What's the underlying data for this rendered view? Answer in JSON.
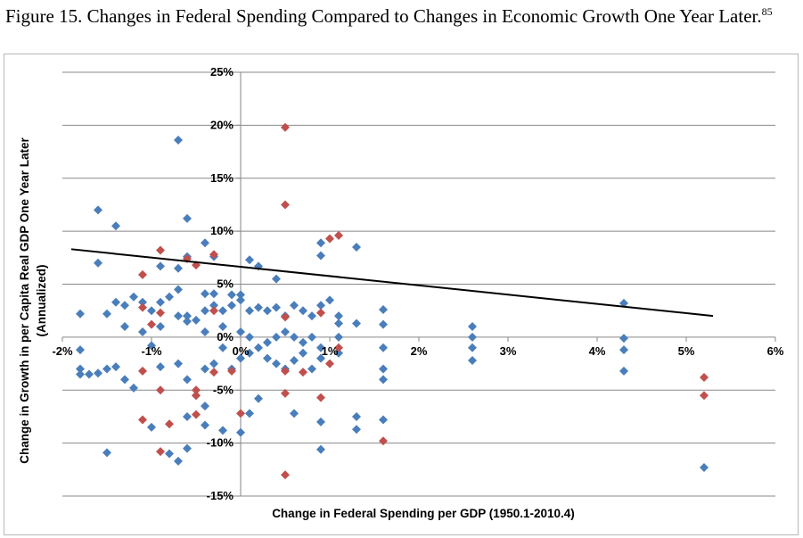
{
  "figure": {
    "title": "Figure 15. Changes in Federal Spending Compared to Changes in Economic Growth One Year Later.",
    "footnote": "85"
  },
  "colors": {
    "blue_marker": "#4a7ebb",
    "red_marker": "#c0504d",
    "gridline": "#888888",
    "axis": "#868686",
    "trendline": "#000000"
  },
  "chart_data": {
    "type": "scatter",
    "title": "",
    "xlabel": "Change in Federal Spending per GDP (1950.1-2010.4)",
    "ylabel_line1": "Change in Growth in per Capita Real GDP One Year Later",
    "ylabel_line2": "(Annualized)",
    "xlim": [
      -2,
      6
    ],
    "ylim": [
      -15,
      25
    ],
    "x_ticks": [
      -2,
      -1,
      0,
      1,
      2,
      3,
      4,
      5,
      6
    ],
    "x_tick_labels": [
      "-2%",
      "-1%",
      "0%",
      "1%",
      "2%",
      "3%",
      "4%",
      "5%",
      "6%"
    ],
    "y_ticks": [
      25,
      20,
      15,
      10,
      5,
      0,
      -5,
      -10,
      -15
    ],
    "y_tick_labels": [
      "25%",
      "20%",
      "15%",
      "10%",
      "5%",
      "0%",
      "-5%",
      "-10%",
      "-15%"
    ],
    "gridlines": "horizontal",
    "trendline": {
      "x": [
        -1.9,
        5.3
      ],
      "y": [
        8.3,
        2.0
      ]
    },
    "series": [
      {
        "name": "blue",
        "points": [
          [
            -1.6,
            12.0
          ],
          [
            -1.4,
            10.5
          ],
          [
            -0.7,
            18.6
          ],
          [
            -0.6,
            11.2
          ],
          [
            -0.4,
            8.9
          ],
          [
            -1.6,
            7.0
          ],
          [
            -0.9,
            6.7
          ],
          [
            -0.7,
            6.5
          ],
          [
            -0.6,
            7.6
          ],
          [
            -0.3,
            7.6
          ],
          [
            0.1,
            7.3
          ],
          [
            0.2,
            6.7
          ],
          [
            0.4,
            5.5
          ],
          [
            0.9,
            8.9
          ],
          [
            0.9,
            7.7
          ],
          [
            1.3,
            8.5
          ],
          [
            -1.8,
            2.2
          ],
          [
            -1.5,
            2.2
          ],
          [
            -1.4,
            3.3
          ],
          [
            -1.3,
            3.0
          ],
          [
            -1.2,
            3.8
          ],
          [
            -1.1,
            3.3
          ],
          [
            -1.0,
            2.5
          ],
          [
            -0.9,
            3.3
          ],
          [
            -0.8,
            3.8
          ],
          [
            -0.7,
            4.5
          ],
          [
            -0.7,
            2.0
          ],
          [
            -0.6,
            2.0
          ],
          [
            -0.5,
            1.6
          ],
          [
            -0.4,
            4.1
          ],
          [
            -0.4,
            2.5
          ],
          [
            -0.3,
            4.1
          ],
          [
            -0.3,
            3.0
          ],
          [
            -0.2,
            2.5
          ],
          [
            -0.1,
            3.0
          ],
          [
            -0.1,
            4.0
          ],
          [
            0.0,
            3.5
          ],
          [
            0.0,
            4.0
          ],
          [
            0.1,
            2.5
          ],
          [
            0.2,
            2.8
          ],
          [
            0.3,
            2.5
          ],
          [
            0.4,
            2.8
          ],
          [
            0.5,
            2.0
          ],
          [
            0.6,
            3.0
          ],
          [
            0.7,
            2.5
          ],
          [
            0.8,
            2.0
          ],
          [
            0.9,
            3.0
          ],
          [
            1.0,
            3.5
          ],
          [
            1.1,
            2.0
          ],
          [
            1.1,
            1.3
          ],
          [
            1.3,
            1.3
          ],
          [
            1.6,
            2.6
          ],
          [
            1.6,
            1.2
          ],
          [
            2.6,
            1.0
          ],
          [
            -1.3,
            1.0
          ],
          [
            -1.1,
            0.5
          ],
          [
            -0.9,
            1.0
          ],
          [
            -0.6,
            1.5
          ],
          [
            -0.4,
            0.5
          ],
          [
            -0.2,
            1.0
          ],
          [
            0.0,
            0.5
          ],
          [
            0.1,
            0.0
          ],
          [
            0.3,
            -0.5
          ],
          [
            0.4,
            0.0
          ],
          [
            0.5,
            0.5
          ],
          [
            0.6,
            0.0
          ],
          [
            0.7,
            -0.5
          ],
          [
            0.8,
            0.0
          ],
          [
            0.9,
            -1.0
          ],
          [
            1.1,
            0.0
          ],
          [
            2.6,
            0.0
          ],
          [
            4.3,
            3.2
          ],
          [
            4.3,
            -0.1
          ],
          [
            -1.8,
            -1.2
          ],
          [
            -1.8,
            -3.0
          ],
          [
            -1.8,
            -3.5
          ],
          [
            -1.7,
            -3.5
          ],
          [
            -1.6,
            -3.4
          ],
          [
            -1.5,
            -3.0
          ],
          [
            -1.4,
            -2.8
          ],
          [
            -1.3,
            -4.0
          ],
          [
            -1.2,
            -4.8
          ],
          [
            -1.0,
            -0.8
          ],
          [
            -0.9,
            -2.8
          ],
          [
            -0.7,
            -2.5
          ],
          [
            -0.6,
            -4.0
          ],
          [
            -0.5,
            -5.5
          ],
          [
            -0.4,
            -3.0
          ],
          [
            -0.3,
            -2.5
          ],
          [
            -0.2,
            -1.0
          ],
          [
            -0.1,
            -3.0
          ],
          [
            0.0,
            -2.0
          ],
          [
            0.1,
            -1.5
          ],
          [
            0.2,
            -1.0
          ],
          [
            0.3,
            -2.0
          ],
          [
            0.4,
            -2.5
          ],
          [
            0.5,
            -3.0
          ],
          [
            0.6,
            -2.2
          ],
          [
            0.7,
            -1.5
          ],
          [
            0.8,
            -3.0
          ],
          [
            0.9,
            -2.0
          ],
          [
            1.1,
            -1.5
          ],
          [
            1.6,
            -1.0
          ],
          [
            1.6,
            -3.0
          ],
          [
            1.6,
            -4.0
          ],
          [
            2.6,
            -1.0
          ],
          [
            2.6,
            -2.2
          ],
          [
            4.3,
            -1.2
          ],
          [
            4.3,
            -3.2
          ],
          [
            -1.0,
            -8.5
          ],
          [
            -0.8,
            -11.0
          ],
          [
            -0.7,
            -11.7
          ],
          [
            -0.6,
            -10.5
          ],
          [
            -0.6,
            -7.5
          ],
          [
            -0.4,
            -6.5
          ],
          [
            -0.4,
            -8.3
          ],
          [
            -0.2,
            -8.8
          ],
          [
            0.0,
            -9.0
          ],
          [
            0.1,
            -7.2
          ],
          [
            0.2,
            -5.8
          ],
          [
            0.6,
            -7.2
          ],
          [
            0.9,
            -8.0
          ],
          [
            0.9,
            -10.6
          ],
          [
            1.3,
            -7.5
          ],
          [
            1.3,
            -8.7
          ],
          [
            1.6,
            -7.8
          ],
          [
            -1.5,
            -10.9
          ],
          [
            5.2,
            -12.3
          ]
        ]
      },
      {
        "name": "red",
        "points": [
          [
            0.5,
            19.8
          ],
          [
            0.5,
            12.5
          ],
          [
            1.0,
            9.3
          ],
          [
            1.1,
            9.6
          ],
          [
            -0.9,
            8.2
          ],
          [
            -0.6,
            7.4
          ],
          [
            -0.5,
            6.8
          ],
          [
            -0.3,
            7.8
          ],
          [
            -1.1,
            5.9
          ],
          [
            -1.1,
            2.8
          ],
          [
            -0.9,
            2.3
          ],
          [
            -0.3,
            2.5
          ],
          [
            0.5,
            1.9
          ],
          [
            0.9,
            2.3
          ],
          [
            -1.0,
            1.2
          ],
          [
            -1.1,
            -3.2
          ],
          [
            -0.9,
            -5.0
          ],
          [
            -0.8,
            -8.2
          ],
          [
            -0.5,
            -5.0
          ],
          [
            -0.5,
            -5.5
          ],
          [
            -0.3,
            -3.3
          ],
          [
            -0.1,
            -3.2
          ],
          [
            0.0,
            -7.2
          ],
          [
            0.5,
            -3.2
          ],
          [
            0.5,
            -5.3
          ],
          [
            0.7,
            -3.3
          ],
          [
            1.0,
            -2.5
          ],
          [
            1.1,
            -1.0
          ],
          [
            0.9,
            -5.7
          ],
          [
            1.6,
            -9.8
          ],
          [
            0.5,
            -13.0
          ],
          [
            -1.1,
            -7.8
          ],
          [
            -0.9,
            -10.8
          ],
          [
            -0.5,
            -7.3
          ],
          [
            5.2,
            -3.8
          ],
          [
            5.2,
            -5.5
          ]
        ]
      }
    ]
  }
}
